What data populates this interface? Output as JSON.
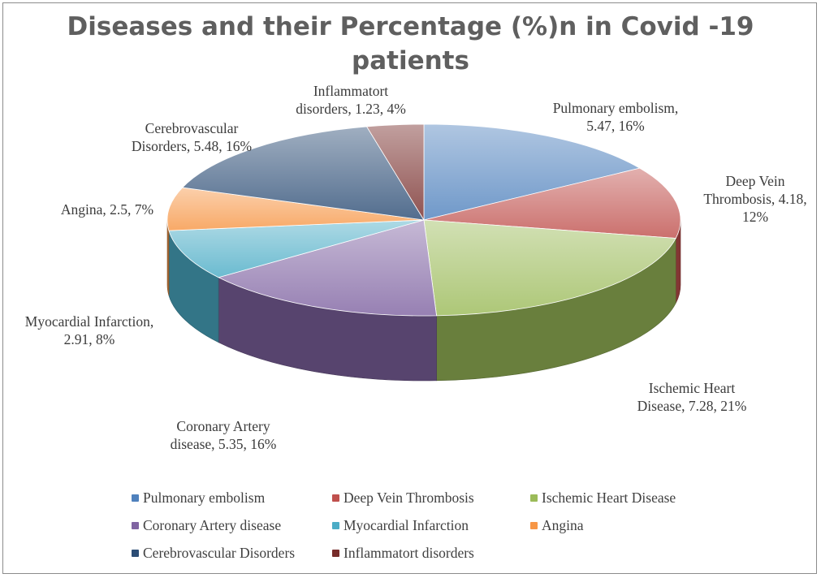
{
  "chart_data": {
    "type": "pie",
    "title_lines": [
      "Diseases and their Percentage (%)n in Covid -19",
      "patients"
    ],
    "slices": [
      {
        "name": "Pulmonary embolism",
        "value": 5.47,
        "percent": "16%",
        "label_lines": [
          "Pulmonary embolism,",
          "5.47, 16%"
        ],
        "color": "#4f81bd"
      },
      {
        "name": "Deep Vein Thrombosis",
        "value": 4.18,
        "percent": "12%",
        "label_lines": [
          "Deep Vein",
          "Thrombosis, 4.18,",
          "12%"
        ],
        "color": "#c0504d"
      },
      {
        "name": "Ischemic Heart Disease",
        "value": 7.28,
        "percent": "21%",
        "label_lines": [
          "Ischemic Heart",
          "Disease, 7.28, 21%"
        ],
        "color": "#9bbb59"
      },
      {
        "name": "Coronary Artery disease",
        "value": 5.35,
        "percent": "16%",
        "label_lines": [
          "Coronary Artery",
          "disease, 5.35, 16%"
        ],
        "color": "#8064a2"
      },
      {
        "name": "Myocardial Infarction",
        "value": 2.91,
        "percent": "8%",
        "label_lines": [
          "Myocardial Infarction,",
          "2.91, 8%"
        ],
        "color": "#4bacc6"
      },
      {
        "name": "Angina",
        "value": 2.5,
        "percent": "7%",
        "label_lines": [
          "Angina, 2.5, 7%"
        ],
        "color": "#f79646"
      },
      {
        "name": "Cerebrovascular Disorders",
        "value": 5.48,
        "percent": "16%",
        "label_lines": [
          "Cerebrovascular",
          "Disorders, 5.48, 16%"
        ],
        "color": "#2c4d75"
      },
      {
        "name": "Inflammatort disorders",
        "value": 1.23,
        "percent": "4%",
        "label_lines": [
          "Inflammatort",
          "disorders, 1.23, 4%"
        ],
        "color": "#772c2a"
      }
    ],
    "legend": {
      "position": "bottom",
      "rows": [
        [
          "Pulmonary embolism",
          "Deep Vein Thrombosis",
          "Ischemic Heart Disease"
        ],
        [
          "Coronary Artery disease",
          "Myocardial Infarction",
          "Angina"
        ],
        [
          "Cerebrovascular Disorders",
          "Inflammatort disorders"
        ]
      ]
    }
  }
}
